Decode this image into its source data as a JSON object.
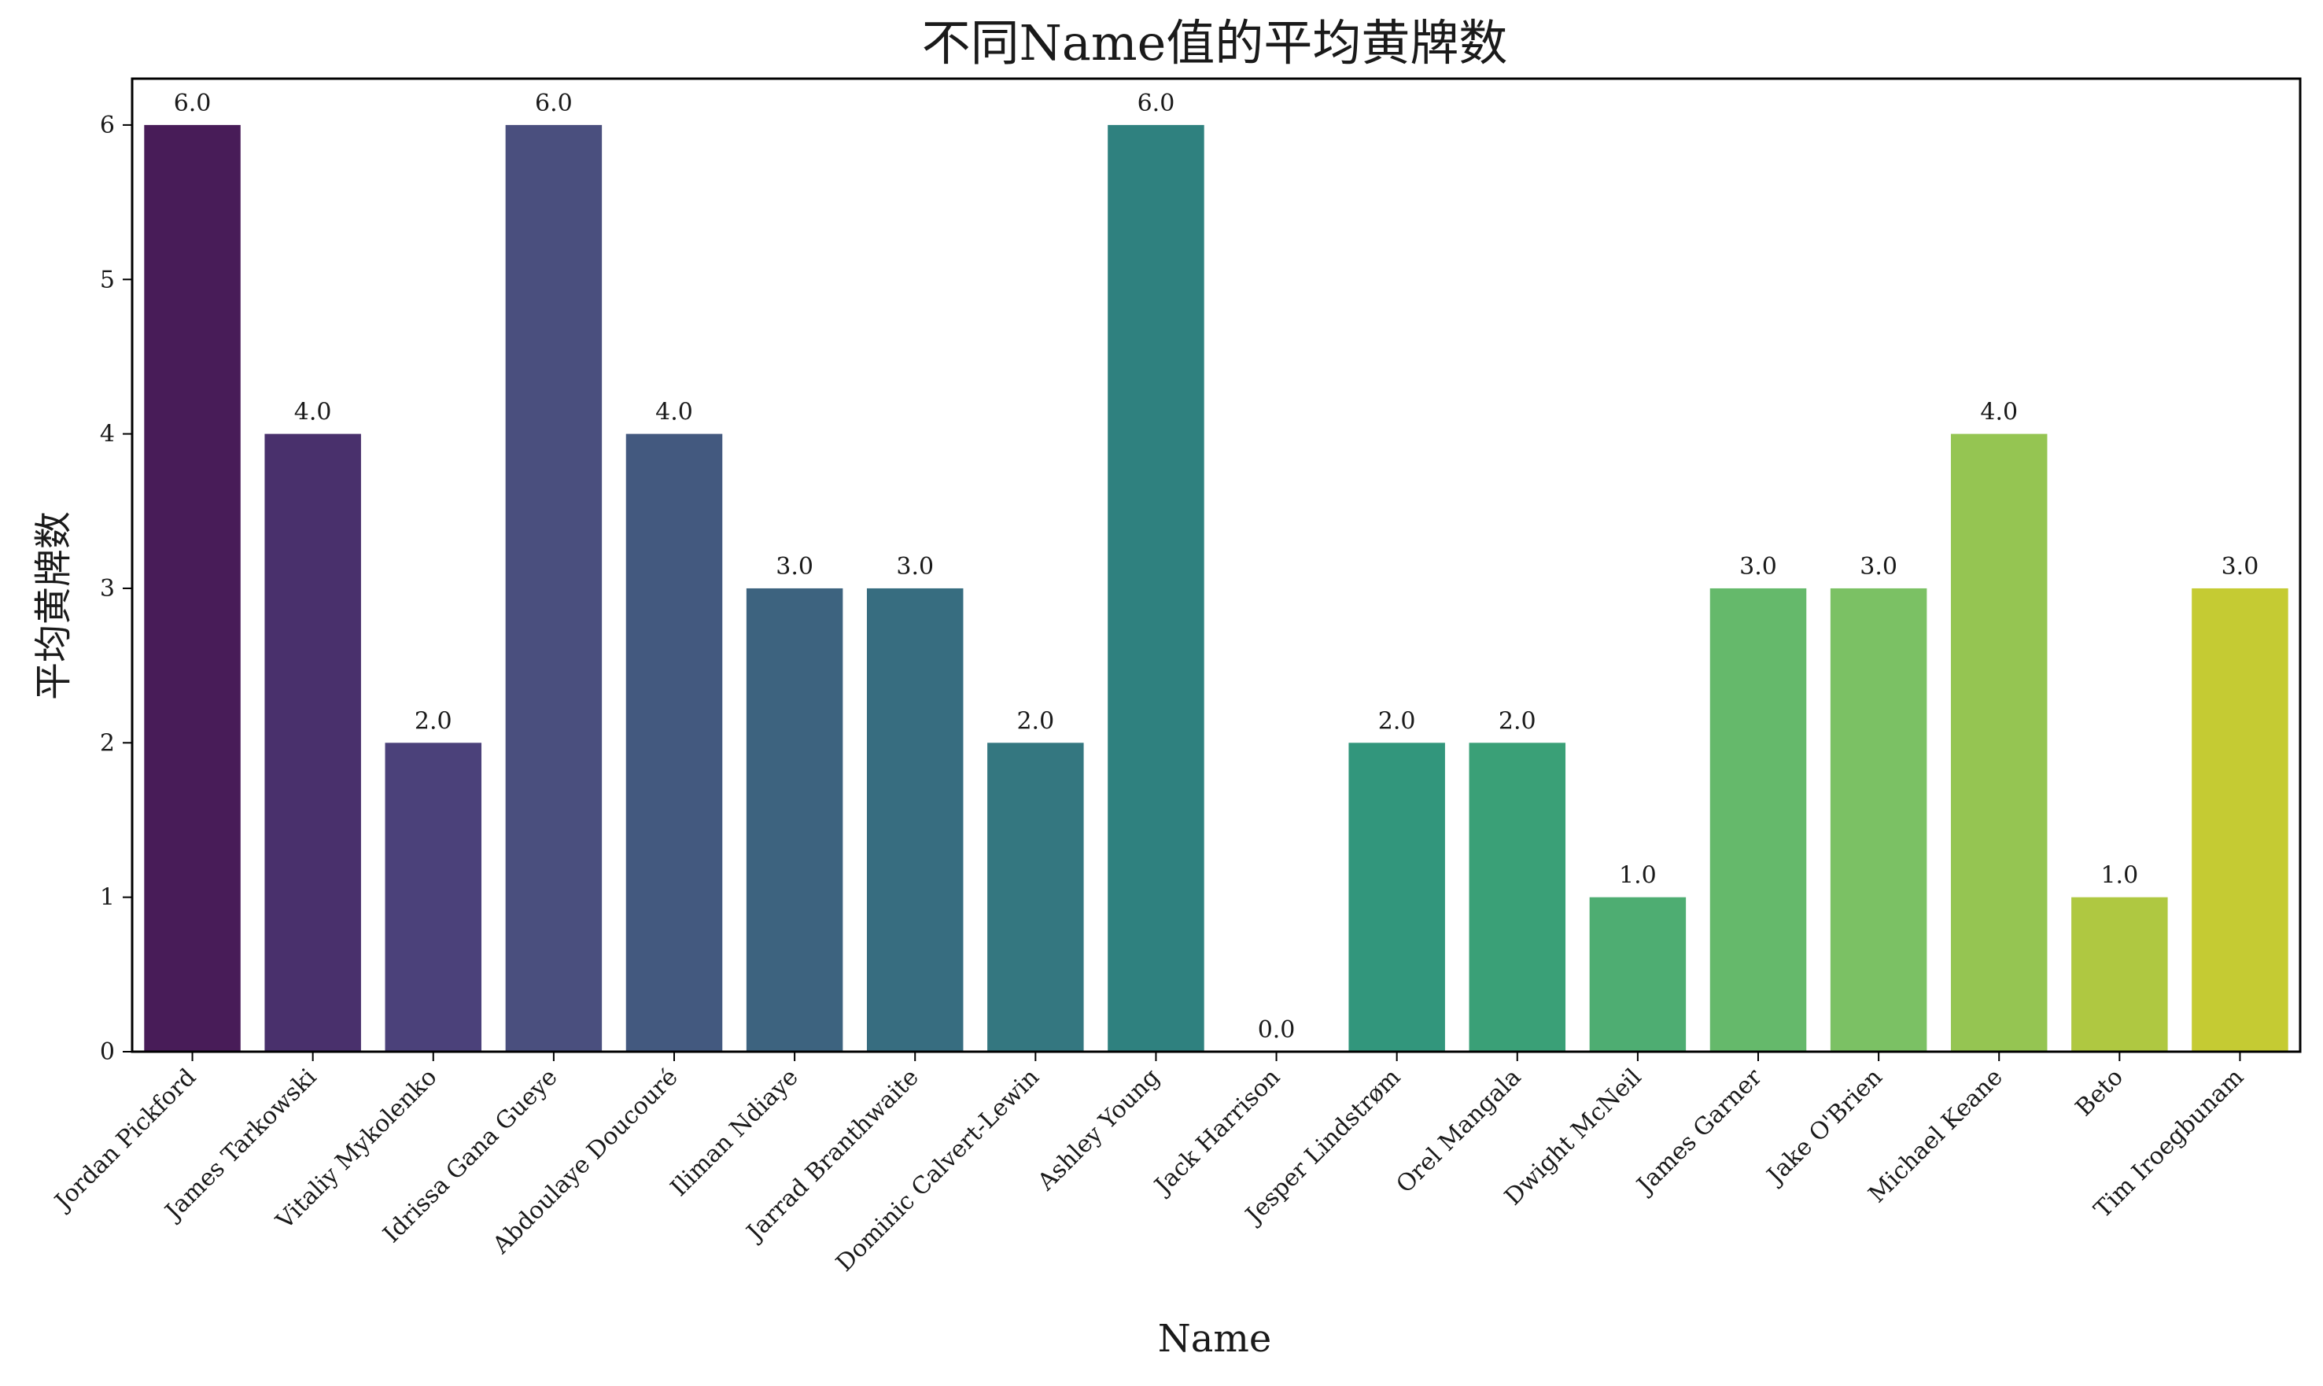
{
  "chart_data": {
    "type": "bar",
    "title": "不同Name值的平均黄牌数",
    "xlabel": "Name",
    "ylabel": "平均黄牌数",
    "ylim": [
      0,
      6.3
    ],
    "yticks": [
      0,
      1,
      2,
      3,
      4,
      5,
      6
    ],
    "grid": false,
    "legend": "none",
    "categories": [
      "Jordan Pickford",
      "James Tarkowski",
      "Vitaliy Mykolenko",
      "Idrissa Gana Gueye",
      "Abdoulaye Doucouré",
      "Iliman Ndiaye",
      "Jarrad Branthwaite",
      "Dominic Calvert-Lewin",
      "Ashley Young",
      "Jack Harrison",
      "Jesper Lindstrøm",
      "Orel Mangala",
      "Dwight McNeil",
      "James Garner",
      "Jake O'Brien",
      "Michael Keane",
      "Beto",
      "Tim Iroegbunam"
    ],
    "values": [
      6,
      4,
      2,
      6,
      4,
      3,
      3,
      2,
      6,
      0,
      2,
      2,
      1,
      3,
      3,
      4,
      1,
      3
    ],
    "value_labels": [
      "6.0",
      "4.0",
      "2.0",
      "6.0",
      "4.0",
      "3.0",
      "3.0",
      "2.0",
      "6.0",
      "0.0",
      "2.0",
      "2.0",
      "1.0",
      "3.0",
      "3.0",
      "4.0",
      "1.0",
      "3.0"
    ],
    "colors": [
      "#481c58",
      "#49306c",
      "#4b417a",
      "#4a4f7e",
      "#43597f",
      "#3d637f",
      "#376d80",
      "#347780",
      "#2f817f",
      "#2a8b7d",
      "#32967c",
      "#3aa077",
      "#4ead72",
      "#65b96b",
      "#7bc164",
      "#95c552",
      "#afc841",
      "#c5cb33"
    ]
  }
}
